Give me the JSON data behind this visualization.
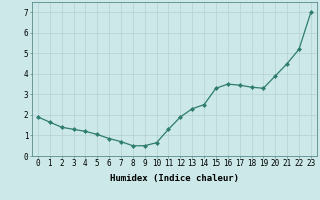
{
  "x": [
    0,
    1,
    2,
    3,
    4,
    5,
    6,
    7,
    8,
    9,
    10,
    11,
    12,
    13,
    14,
    15,
    16,
    17,
    18,
    19,
    20,
    21,
    22,
    23
  ],
  "y": [
    1.9,
    1.65,
    1.4,
    1.3,
    1.2,
    1.05,
    0.85,
    0.7,
    0.5,
    0.5,
    0.65,
    1.3,
    1.9,
    2.3,
    2.5,
    3.3,
    3.5,
    3.45,
    3.35,
    3.3,
    3.9,
    4.5,
    5.2,
    7.0
  ],
  "line_color": "#2e7d6e",
  "marker": "D",
  "marker_size": 2.0,
  "linewidth": 0.9,
  "background_color": "#cce8e8",
  "grid_color": "#b8d4d4",
  "xlabel": "Humidex (Indice chaleur)",
  "xlabel_fontsize": 6.5,
  "xlabel_bold": true,
  "xlim": [
    -0.5,
    23.5
  ],
  "ylim": [
    0,
    7.5
  ],
  "yticks": [
    0,
    1,
    2,
    3,
    4,
    5,
    6,
    7
  ],
  "xtick_labels": [
    "0",
    "1",
    "2",
    "3",
    "4",
    "5",
    "6",
    "7",
    "8",
    "9",
    "10",
    "11",
    "12",
    "13",
    "14",
    "15",
    "16",
    "17",
    "18",
    "19",
    "20",
    "21",
    "22",
    "23"
  ],
  "tick_fontsize": 5.5
}
